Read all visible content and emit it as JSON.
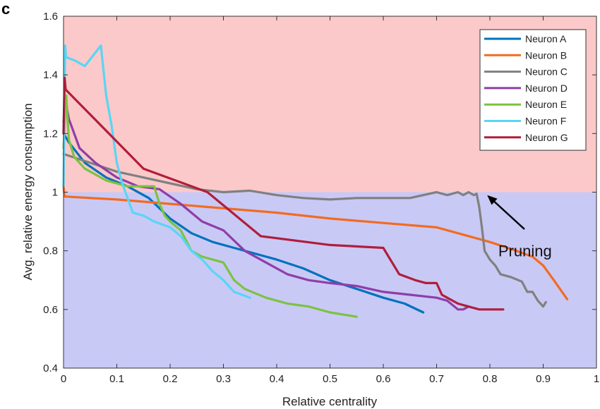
{
  "panel_label": "c",
  "annotation": {
    "text": "Pruning",
    "arrow_to": [
      0.795,
      0.99
    ],
    "text_at": [
      0.87,
      0.8
    ]
  },
  "chart_data": {
    "type": "line",
    "title": "",
    "xlabel": "Relative centrality",
    "ylabel": "Avg. relative energy consumption",
    "xlim": [
      0,
      1
    ],
    "ylim": [
      0.4,
      1.6
    ],
    "xticks": [
      "0",
      "0.1",
      "0.2",
      "0.3",
      "0.4",
      "0.5",
      "0.6",
      "0.7",
      "0.8",
      "0.9",
      "1"
    ],
    "yticks": [
      "0.4",
      "0.6",
      "0.8",
      "1",
      "1.2",
      "1.4",
      "1.6"
    ],
    "regions": [
      {
        "y0": 1.0,
        "y1": 1.6,
        "color": "#fbc9c9"
      },
      {
        "y0": 0.4,
        "y1": 1.0,
        "color": "#c9c9f6"
      }
    ],
    "grid": false,
    "legend_position": "top-right",
    "series": [
      {
        "name": "Neuron A",
        "color": "#0072bd",
        "x": [
          0,
          0.01,
          0.04,
          0.08,
          0.12,
          0.16,
          0.2,
          0.24,
          0.28,
          0.32,
          0.36,
          0.4,
          0.45,
          0.5,
          0.55,
          0.6,
          0.64,
          0.675
        ],
        "y": [
          1.2,
          1.17,
          1.1,
          1.05,
          1.02,
          0.98,
          0.91,
          0.86,
          0.83,
          0.81,
          0.79,
          0.77,
          0.74,
          0.7,
          0.67,
          0.64,
          0.62,
          0.59
        ]
      },
      {
        "name": "Neuron B",
        "color": "#f26b21",
        "x": [
          0,
          0.001,
          0.002,
          0.1,
          0.2,
          0.3,
          0.4,
          0.5,
          0.6,
          0.7,
          0.8,
          0.85,
          0.88,
          0.9,
          0.92,
          0.945
        ],
        "y": [
          1.02,
          1.0,
          0.985,
          0.975,
          0.96,
          0.945,
          0.93,
          0.91,
          0.895,
          0.88,
          0.83,
          0.8,
          0.78,
          0.75,
          0.7,
          0.635
        ]
      },
      {
        "name": "Neuron C",
        "color": "#808080",
        "x": [
          0,
          0.05,
          0.1,
          0.15,
          0.2,
          0.25,
          0.3,
          0.35,
          0.4,
          0.45,
          0.5,
          0.55,
          0.6,
          0.65,
          0.7,
          0.72,
          0.74,
          0.75,
          0.76,
          0.77,
          0.775,
          0.78,
          0.785,
          0.79,
          0.8,
          0.81,
          0.82,
          0.84,
          0.86,
          0.87,
          0.88,
          0.89,
          0.9,
          0.905
        ],
        "y": [
          1.13,
          1.1,
          1.07,
          1.05,
          1.03,
          1.01,
          1.0,
          1.005,
          0.99,
          0.98,
          0.975,
          0.98,
          0.98,
          0.98,
          1.0,
          0.99,
          1.0,
          0.99,
          1.0,
          0.99,
          0.995,
          0.95,
          0.88,
          0.8,
          0.77,
          0.75,
          0.72,
          0.71,
          0.695,
          0.66,
          0.66,
          0.63,
          0.61,
          0.625
        ]
      },
      {
        "name": "Neuron D",
        "color": "#8e3ea8",
        "x": [
          0,
          0.005,
          0.01,
          0.03,
          0.06,
          0.1,
          0.14,
          0.18,
          0.22,
          0.26,
          0.3,
          0.34,
          0.38,
          0.42,
          0.46,
          0.5,
          0.55,
          0.6,
          0.65,
          0.7,
          0.72,
          0.74,
          0.75,
          0.76
        ],
        "y": [
          1.24,
          1.3,
          1.25,
          1.15,
          1.1,
          1.05,
          1.02,
          1.01,
          0.96,
          0.9,
          0.87,
          0.8,
          0.76,
          0.72,
          0.7,
          0.69,
          0.68,
          0.66,
          0.65,
          0.64,
          0.63,
          0.6,
          0.6,
          0.61
        ]
      },
      {
        "name": "Neuron E",
        "color": "#7cc242",
        "x": [
          0,
          0.005,
          0.01,
          0.02,
          0.04,
          0.08,
          0.12,
          0.16,
          0.17,
          0.18,
          0.19,
          0.2,
          0.22,
          0.24,
          0.26,
          0.28,
          0.3,
          0.32,
          0.34,
          0.38,
          0.42,
          0.46,
          0.5,
          0.55
        ],
        "y": [
          1.15,
          1.33,
          1.18,
          1.12,
          1.08,
          1.04,
          1.02,
          1.02,
          1.02,
          0.96,
          0.92,
          0.9,
          0.87,
          0.8,
          0.78,
          0.77,
          0.76,
          0.7,
          0.67,
          0.64,
          0.62,
          0.61,
          0.59,
          0.575
        ]
      },
      {
        "name": "Neuron F",
        "color": "#5ad5f5",
        "x": [
          0,
          0.003,
          0.005,
          0.02,
          0.04,
          0.07,
          0.08,
          0.09,
          0.1,
          0.11,
          0.13,
          0.15,
          0.17,
          0.2,
          0.22,
          0.24,
          0.26,
          0.28,
          0.3,
          0.32,
          0.35
        ],
        "y": [
          1.02,
          1.5,
          1.46,
          1.45,
          1.43,
          1.5,
          1.33,
          1.23,
          1.1,
          1.03,
          0.93,
          0.92,
          0.9,
          0.88,
          0.85,
          0.8,
          0.77,
          0.73,
          0.7,
          0.66,
          0.64
        ]
      },
      {
        "name": "Neuron G",
        "color": "#b01e3b",
        "x": [
          0,
          0.002,
          0.004,
          0.15,
          0.27,
          0.37,
          0.5,
          0.6,
          0.61,
          0.63,
          0.66,
          0.68,
          0.7,
          0.71,
          0.72,
          0.74,
          0.76,
          0.78,
          0.8,
          0.825
        ],
        "y": [
          1.2,
          1.39,
          1.35,
          1.08,
          1.0,
          0.85,
          0.82,
          0.81,
          0.78,
          0.72,
          0.7,
          0.69,
          0.69,
          0.65,
          0.64,
          0.62,
          0.61,
          0.6,
          0.6,
          0.6
        ]
      }
    ]
  }
}
